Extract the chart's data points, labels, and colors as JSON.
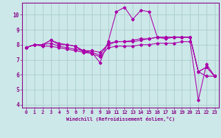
{
  "xlabel": "Windchill (Refroidissement éolien,°C)",
  "ylabel": "",
  "background_color": "#cce8e8",
  "grid_color": "#aacccc",
  "line_color": "#aa00aa",
  "spine_color": "#880088",
  "tick_color": "#880088",
  "label_color": "#880088",
  "xlim": [
    -0.5,
    23.5
  ],
  "ylim": [
    3.8,
    10.8
  ],
  "yticks": [
    4,
    5,
    6,
    7,
    8,
    9,
    10
  ],
  "xticks": [
    0,
    1,
    2,
    3,
    4,
    5,
    6,
    7,
    8,
    9,
    10,
    11,
    12,
    13,
    14,
    15,
    16,
    17,
    18,
    19,
    20,
    21,
    22,
    23
  ],
  "series": [
    [
      7.8,
      8.0,
      8.0,
      8.3,
      8.0,
      8.0,
      7.9,
      7.5,
      7.5,
      6.8,
      8.2,
      10.2,
      10.5,
      9.7,
      10.3,
      10.2,
      8.5,
      8.4,
      8.5,
      8.5,
      8.5,
      6.2,
      6.5,
      5.9
    ],
    [
      7.8,
      8.0,
      8.0,
      8.1,
      7.9,
      7.8,
      7.7,
      7.6,
      7.5,
      7.3,
      8.1,
      8.2,
      8.2,
      8.2,
      8.3,
      8.4,
      8.5,
      8.5,
      8.5,
      8.5,
      8.5,
      6.2,
      5.9,
      5.9
    ],
    [
      7.8,
      8.0,
      8.0,
      8.3,
      8.1,
      8.0,
      7.9,
      7.6,
      7.6,
      7.5,
      8.0,
      8.2,
      8.2,
      8.3,
      8.4,
      8.4,
      8.5,
      8.5,
      8.5,
      8.5,
      8.5,
      6.2,
      6.5,
      5.9
    ],
    [
      7.8,
      8.0,
      7.9,
      7.9,
      7.8,
      7.7,
      7.6,
      7.5,
      7.4,
      7.2,
      7.8,
      7.9,
      7.9,
      7.9,
      8.0,
      8.0,
      8.1,
      8.1,
      8.1,
      8.2,
      8.2,
      4.3,
      6.7,
      5.9
    ]
  ],
  "marker": "D",
  "markersize": 2,
  "linewidth": 0.8,
  "xlabel_fontsize": 5.0,
  "tick_fontsize": 5.0
}
